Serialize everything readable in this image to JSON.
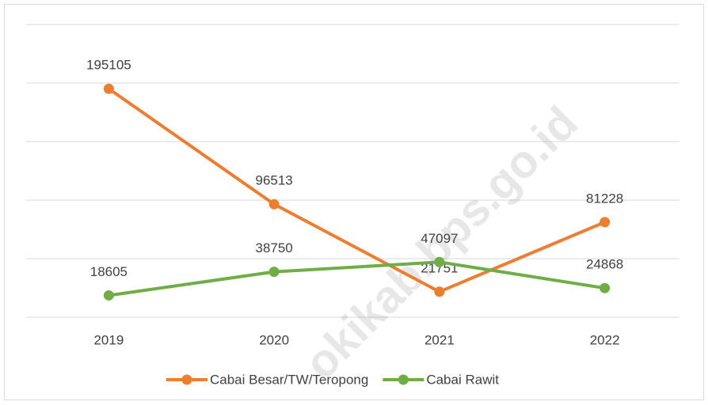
{
  "chart_data": {
    "type": "line",
    "categories": [
      "2019",
      "2020",
      "2021",
      "2022"
    ],
    "series": [
      {
        "name": "Cabai Besar/TW/Teropong",
        "color": "#ed7d31",
        "values": [
          195105,
          96513,
          21751,
          81228
        ]
      },
      {
        "name": "Cabai Rawit",
        "color": "#70ad47",
        "values": [
          18605,
          38750,
          47097,
          24868
        ]
      }
    ],
    "ylim": [
      0,
      250000
    ],
    "yticks": [
      0,
      50000,
      100000,
      150000,
      200000,
      250000
    ],
    "grid": true,
    "legend": "bottom",
    "watermark": "okikab.bps.go.id"
  }
}
